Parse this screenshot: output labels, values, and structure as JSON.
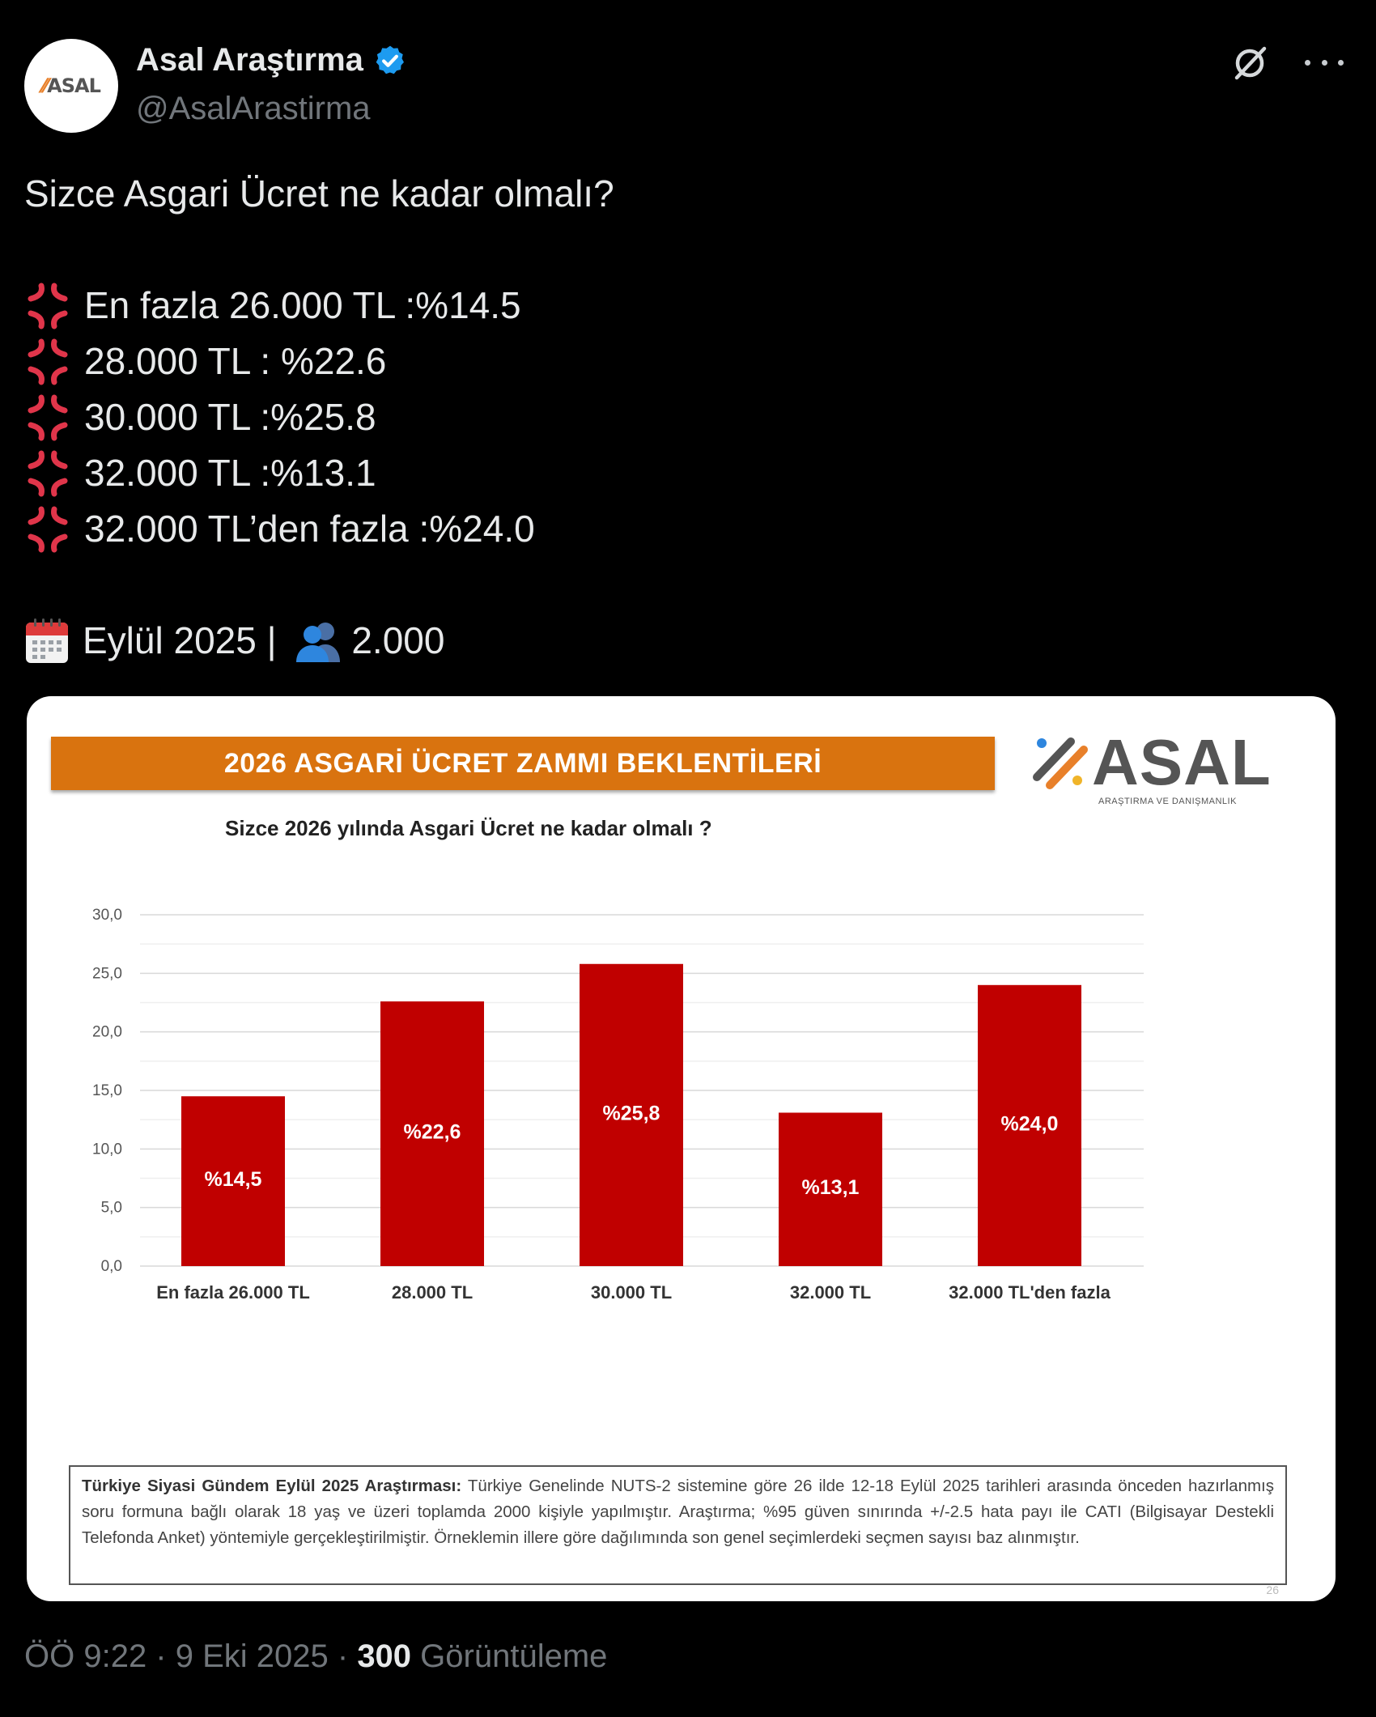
{
  "author": {
    "display_name": "Asal Araştırma",
    "handle": "@AsalArastirma",
    "avatar_text": "ASAL"
  },
  "tweet": {
    "question": "Sizce Asgari Ücret ne kadar olmalı?",
    "items": [
      "En fazla 26.000 TL :%14.5",
      "28.000 TL : %22.6",
      "30.000 TL :%25.8",
      "32.000 TL :%13.1",
      "32.000 TL’den fazla :%24.0"
    ],
    "date_text": "Eylül 2025 | ",
    "sample_size": "2.000"
  },
  "card": {
    "banner": "2026 ASGARİ ÜCRET ZAMMI BEKLENTİLERİ",
    "logo_word": "ASAL",
    "logo_subtitle": "ARAŞTIRMA VE DANIŞMANLIK",
    "note_title": "Türkiye Siyasi Gündem Eylül 2025 Araştırması:",
    "note_body": "Türkiye Genelinde NUTS-2 sistemine göre 26 ilde 12-18 Eylül 2025 tarihleri arasında önceden hazırlanmış soru formuna bağlı olarak 18 yaş ve üzeri toplamda 2000 kişiyle yapılmıştır. Araştırma; %95 güven sınırında +/-2.5 hata payı ile CATI (Bilgisayar Destekli Telefonda Anket) yöntemiyle gerçekleştirilmiştir. Örneklemin illere göre dağılımında son genel seçimlerdeki seçmen sayısı baz alınmıştır.",
    "page_number": "26"
  },
  "chart_data": {
    "type": "bar",
    "title": "Sizce 2026 yılında Asgari Ücret ne kadar olmalı ?",
    "categories": [
      "En fazla 26.000 TL",
      "28.000 TL",
      "30.000 TL",
      "32.000 TL",
      "32.000 TL'den fazla"
    ],
    "values": [
      14.5,
      22.6,
      25.8,
      13.1,
      24.0
    ],
    "data_labels": [
      "%14,5",
      "%22,6",
      "%25,8",
      "%13,1",
      "%24,0"
    ],
    "y_ticks": [
      "0,0",
      "5,0",
      "10,0",
      "15,0",
      "20,0",
      "25,0",
      "30,0"
    ],
    "ylim": [
      0,
      30
    ],
    "grid": true,
    "legend": "none",
    "bar_color": "#c00000"
  },
  "footer": {
    "timestamp": "ÖÖ 9:22 · 9 Eki 2025 · ",
    "views": "300",
    "views_label": " Görüntüleme"
  },
  "colors": {
    "background": "#000000",
    "text": "#e7e9ea",
    "muted": "#71767b",
    "verified": "#1d9bf0",
    "banner": "#d9730f",
    "bar": "#c00000"
  }
}
